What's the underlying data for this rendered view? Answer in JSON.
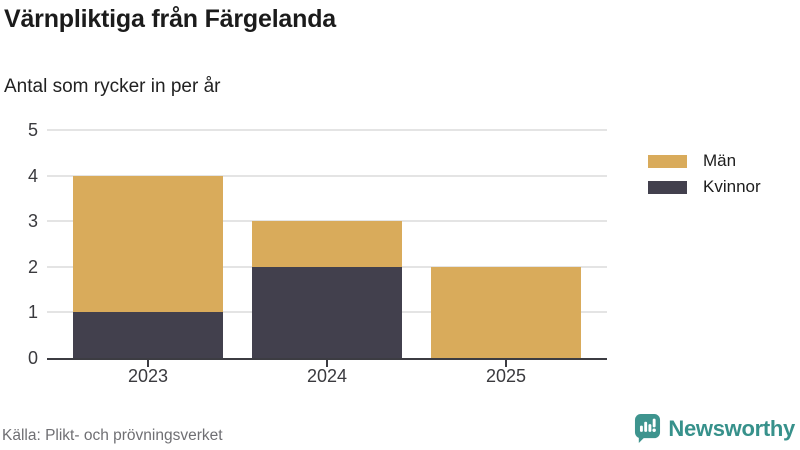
{
  "header": {
    "title": "Värnpliktiga från Färgelanda",
    "subtitle": "Antal som rycker in per år"
  },
  "legend": {
    "items": [
      {
        "label": "Män",
        "color": "#d9ab5b"
      },
      {
        "label": "Kvinnor",
        "color": "#42404d"
      }
    ]
  },
  "footer": {
    "source": "Källa: Plikt- och prövningsverket",
    "brand_name": "Newsworthy",
    "brand_icon": "newsworthy-bar-chart-speech-bubble-icon",
    "brand_color": "#3e948e"
  },
  "chart_data": {
    "type": "bar",
    "stacked": true,
    "title": "Värnpliktiga från Färgelanda",
    "subtitle": "Antal som rycker in per år",
    "categories": [
      "2023",
      "2024",
      "2025"
    ],
    "series": [
      {
        "name": "Kvinnor",
        "color": "#42404d",
        "values": [
          1,
          2,
          0
        ]
      },
      {
        "name": "Män",
        "color": "#d9ab5b",
        "values": [
          3,
          1,
          2
        ]
      }
    ],
    "totals": [
      4,
      3,
      2
    ],
    "xlabel": "",
    "ylabel": "",
    "ylim": [
      0,
      5
    ],
    "yticks": [
      0,
      1,
      2,
      3,
      4,
      5
    ],
    "grid": true,
    "legend_position": "right",
    "colors": {
      "grid": "#e4e4e4",
      "axis": "#3c3c42",
      "tick_text": "#3a3a3e"
    }
  }
}
